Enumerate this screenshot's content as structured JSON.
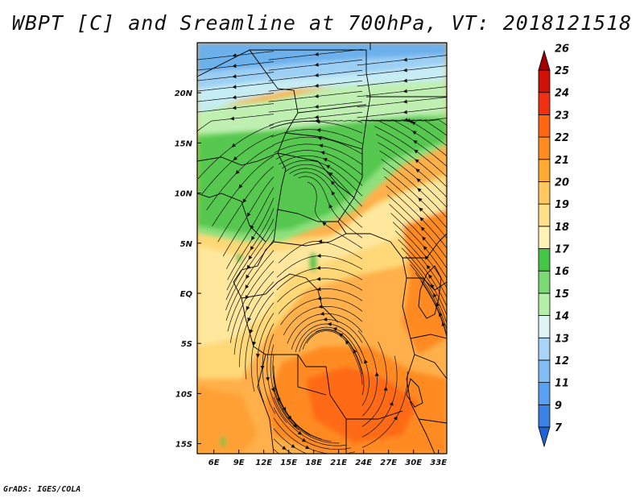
{
  "title": "WBPT [C] and Sreamline at 700hPa, VT: 2018121518",
  "credit": "GrADS: IGES/COLA",
  "map": {
    "lon_range": [
      4,
      34
    ],
    "lat_range": [
      -16,
      25
    ],
    "x_ticks": [
      "6E",
      "9E",
      "12E",
      "15E",
      "18E",
      "21E",
      "24E",
      "27E",
      "30E",
      "33E"
    ],
    "x_tick_values": [
      6,
      9,
      12,
      15,
      18,
      21,
      24,
      27,
      30,
      33
    ],
    "y_ticks": [
      "20N",
      "15N",
      "10N",
      "5N",
      "EQ",
      "5S",
      "10S",
      "15S"
    ],
    "y_tick_values": [
      20,
      15,
      10,
      5,
      0,
      -5,
      -10,
      -15
    ]
  },
  "colorbar": {
    "labels": [
      "7",
      "9",
      "11",
      "12",
      "13",
      "14",
      "15",
      "16",
      "17",
      "18",
      "19",
      "20",
      "21",
      "22",
      "23",
      "24",
      "25",
      "26"
    ],
    "colors": [
      "#1f64d6",
      "#3c82e4",
      "#5aa0f0",
      "#82bcf4",
      "#a8d4f8",
      "#dff4f4",
      "#b4eea8",
      "#7cd872",
      "#46c446",
      "#fff2b6",
      "#ffe08a",
      "#ffc860",
      "#ffaa30",
      "#ff8c1e",
      "#ff6614",
      "#f03010",
      "#d01206",
      "#a50000"
    ]
  }
}
